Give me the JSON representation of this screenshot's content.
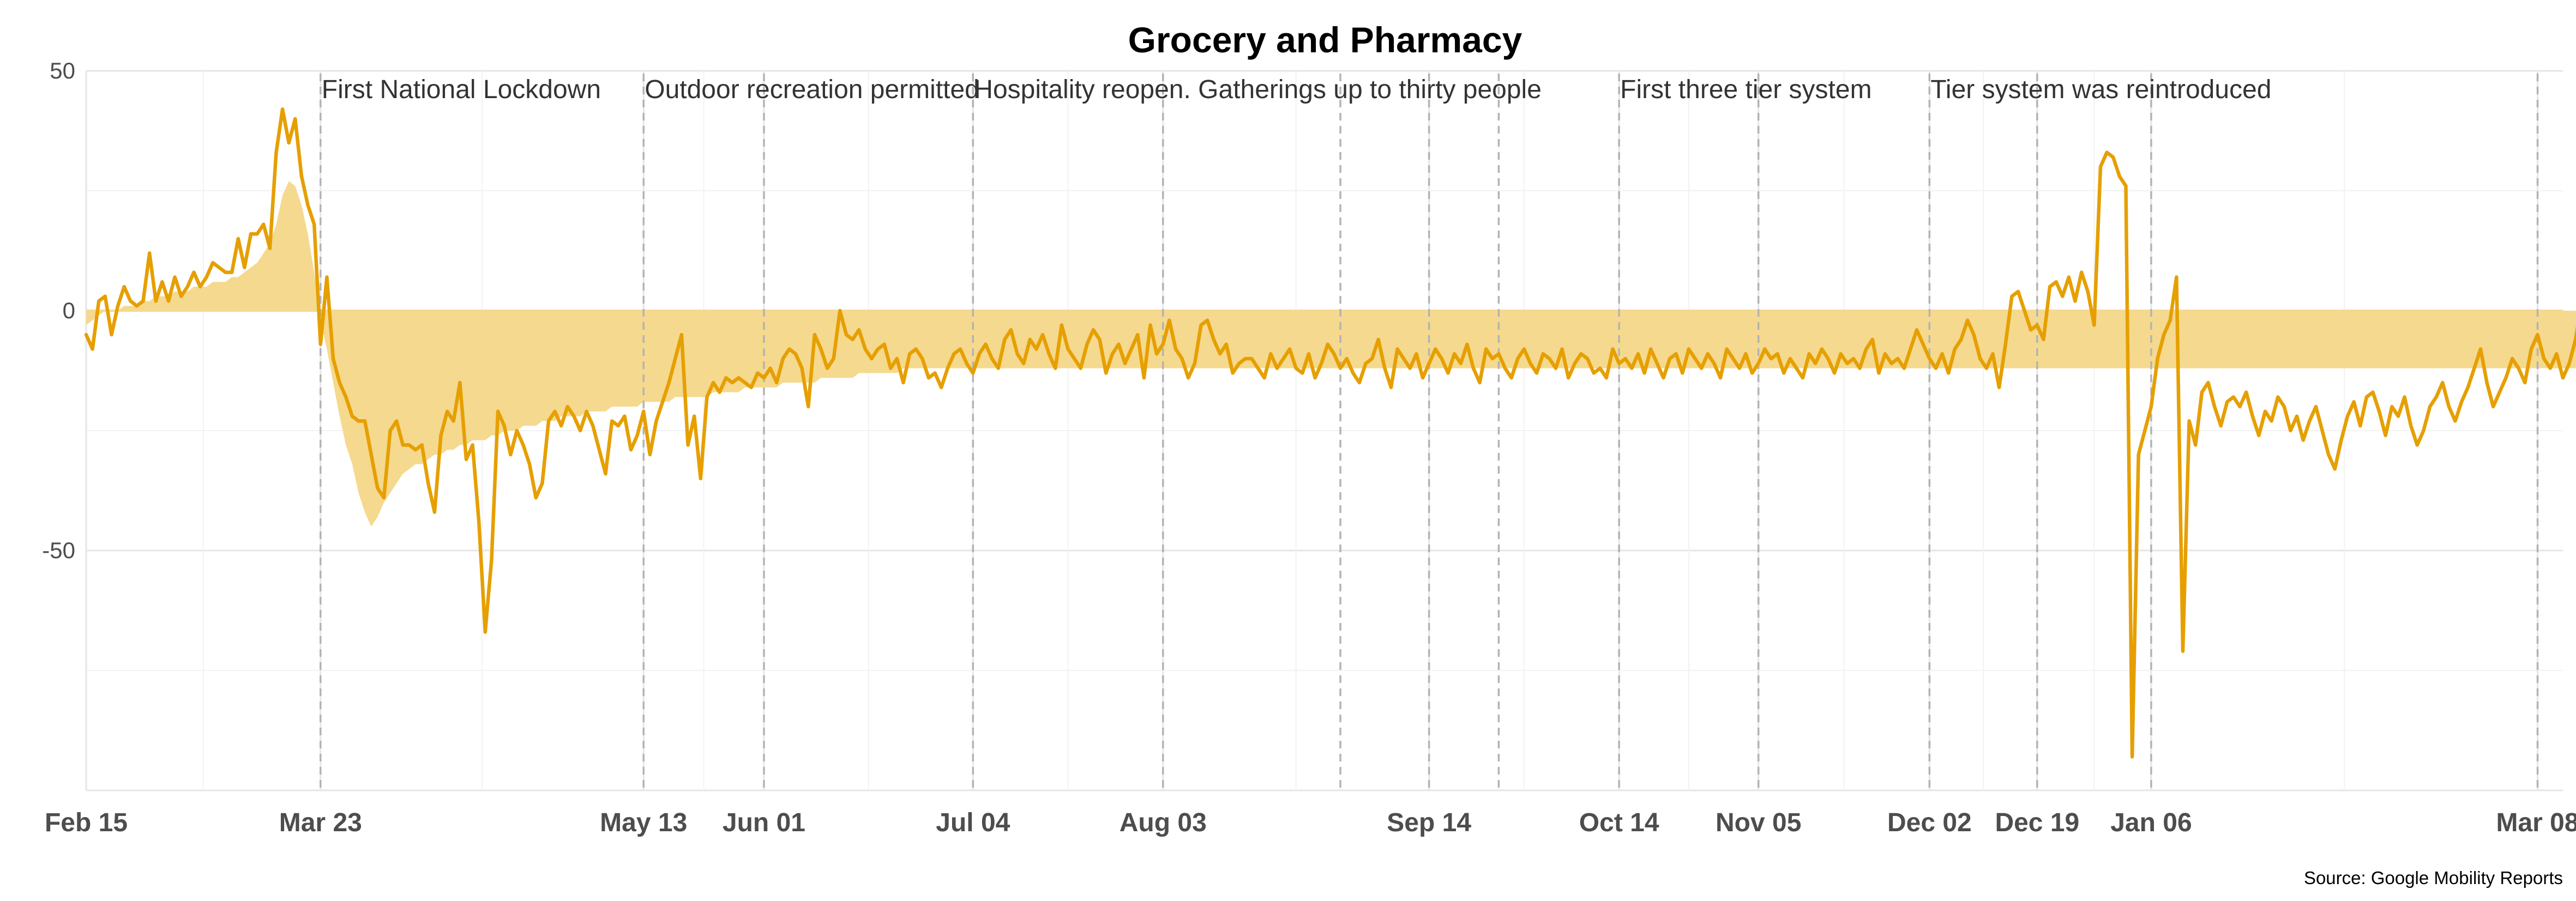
{
  "colors": {
    "line": "#E69F00",
    "area": "#F5D98E",
    "background": "#ffffff"
  },
  "chart_data": {
    "type": "line",
    "title": "Grocery and Pharmacy",
    "caption": "Source: Google Mobility Reports",
    "xlabel": "",
    "ylabel": "",
    "ylim": [
      -100,
      50
    ],
    "y_ticks": [
      50,
      0,
      -50
    ],
    "y_tick_labels": [
      "50",
      "0",
      "-50"
    ],
    "grid": true,
    "x_start": "2020-02-15",
    "x_end": "2021-03-12",
    "x_ticks": [
      {
        "date": "2020-02-15",
        "label": "Feb 15"
      },
      {
        "date": "2020-03-23",
        "label": "Mar 23"
      },
      {
        "date": "2020-05-13",
        "label": "May 13"
      },
      {
        "date": "2020-06-01",
        "label": "Jun 01"
      },
      {
        "date": "2020-07-04",
        "label": "Jul 04"
      },
      {
        "date": "2020-08-03",
        "label": "Aug 03"
      },
      {
        "date": "2020-09-14",
        "label": "Sep 14"
      },
      {
        "date": "2020-10-14",
        "label": "Oct 14"
      },
      {
        "date": "2020-11-05",
        "label": "Nov 05"
      },
      {
        "date": "2020-12-02",
        "label": "Dec 02"
      },
      {
        "date": "2020-12-19",
        "label": "Dec 19"
      },
      {
        "date": "2021-01-06",
        "label": "Jan 06"
      },
      {
        "date": "2021-03-08",
        "label": "Mar 08"
      }
    ],
    "event_lines": [
      "2020-03-23",
      "2020-05-13",
      "2020-06-01",
      "2020-07-04",
      "2020-08-03",
      "2020-08-31",
      "2020-09-14",
      "2020-09-25",
      "2020-10-14",
      "2020-11-05",
      "2020-12-02",
      "2020-12-19",
      "2021-01-06",
      "2021-03-08"
    ],
    "annotations": [
      {
        "date": "2020-03-23",
        "text": "First National Lockdown"
      },
      {
        "date": "2020-05-13",
        "text": "Outdoor recreation permitted"
      },
      {
        "date": "2020-07-04",
        "text": "Hospitality reopen. Gatherings up to thirty people"
      },
      {
        "date": "2020-10-14",
        "text": "First three tier system"
      },
      {
        "date": "2020-12-02",
        "text": "Tier system was reintroduced"
      }
    ],
    "series": [
      {
        "role": "daily",
        "values": [
          -5,
          -8,
          2,
          3,
          -5,
          1,
          5,
          2,
          1,
          2,
          12,
          2,
          6,
          2,
          7,
          3,
          5,
          8,
          5,
          7,
          10,
          9,
          8,
          8,
          15,
          9,
          16,
          16,
          18,
          13,
          33,
          42,
          35,
          40,
          28,
          22,
          18,
          -7,
          7,
          -10,
          -15,
          -18,
          -22,
          -23,
          -23,
          -30,
          -37,
          -39,
          -25,
          -23,
          -28,
          -28,
          -29,
          -28,
          -36,
          -42,
          -26,
          -21,
          -23,
          -15,
          -31,
          -28,
          -44,
          -67,
          -52,
          -21,
          -24,
          -30,
          -25,
          -28,
          -32,
          -39,
          -36,
          -23,
          -21,
          -24,
          -20,
          -22,
          -25,
          -21,
          -24,
          -29,
          -34,
          -23,
          -24,
          -22,
          -29,
          -26,
          -21,
          -30,
          -23,
          -19,
          -15,
          -10,
          -5,
          -28,
          -22,
          -35,
          -18,
          -15,
          -17,
          -14,
          -15,
          -14,
          -15,
          -16,
          -13,
          -14,
          -12,
          -15,
          -10,
          -8,
          -9,
          -12,
          -20,
          -5,
          -8,
          -12,
          -10,
          0,
          -5,
          -6,
          -4,
          -8,
          -10,
          -8,
          -7,
          -12,
          -10,
          -15,
          -9,
          -8,
          -10,
          -14,
          -13,
          -16,
          -12,
          -9,
          -8,
          -11,
          -13,
          -9,
          -7,
          -10,
          -12,
          -6,
          -4,
          -9,
          -11,
          -6,
          -8,
          -5,
          -9,
          -12,
          -3,
          -8,
          -10,
          -12,
          -7,
          -4,
          -6,
          -13,
          -9,
          -7,
          -11,
          -8,
          -5,
          -14,
          -3,
          -9,
          -7,
          -2,
          -8,
          -10,
          -14,
          -11,
          -3,
          -2,
          -6,
          -9,
          -7,
          -13,
          -11,
          -10,
          -10,
          -12,
          -14,
          -9,
          -12,
          -10,
          -8,
          -12,
          -13,
          -9,
          -14,
          -11,
          -7,
          -9,
          -12,
          -10,
          -13,
          -15,
          -11,
          -10,
          -6,
          -12,
          -16,
          -8,
          -10,
          -12,
          -9,
          -14,
          -11,
          -8,
          -10,
          -13,
          -9,
          -11,
          -7,
          -12,
          -15,
          -8,
          -10,
          -9,
          -12,
          -14,
          -10,
          -8,
          -11,
          -13,
          -9,
          -10,
          -12,
          -8,
          -14,
          -11,
          -9,
          -10,
          -13,
          -12,
          -14,
          -8,
          -11,
          -10,
          -12,
          -9,
          -13,
          -8,
          -11,
          -14,
          -10,
          -9,
          -13,
          -8,
          -10,
          -12,
          -9,
          -11,
          -14,
          -8,
          -10,
          -12,
          -9,
          -13,
          -11,
          -8,
          -10,
          -9,
          -13,
          -10,
          -12,
          -14,
          -9,
          -11,
          -8,
          -10,
          -13,
          -9,
          -11,
          -10,
          -12,
          -8,
          -6,
          -13,
          -9,
          -11,
          -10,
          -12,
          -8,
          -4,
          -7,
          -10,
          -12,
          -9,
          -13,
          -8,
          -6,
          -2,
          -5,
          -10,
          -12,
          -9,
          -16,
          -7,
          3,
          4,
          0,
          -4,
          -3,
          -6,
          5,
          6,
          3,
          7,
          2,
          8,
          4,
          -3,
          30,
          33,
          32,
          28,
          26,
          -93,
          -30,
          -25,
          -20,
          -10,
          -5,
          -2,
          7,
          -71,
          -23,
          -28,
          -17,
          -15,
          -20,
          -24,
          -19,
          -18,
          -20,
          -17,
          -22,
          -26,
          -21,
          -23,
          -18,
          -20,
          -25,
          -22,
          -27,
          -23,
          -20,
          -25,
          -30,
          -33,
          -27,
          -22,
          -19,
          -24,
          -18,
          -17,
          -21,
          -26,
          -20,
          -22,
          -18,
          -24,
          -28,
          -25,
          -20,
          -18,
          -15,
          -20,
          -23,
          -19,
          -16,
          -12,
          -8,
          -15,
          -20,
          -17,
          -14,
          -10,
          -12,
          -15,
          -8,
          -5,
          -10,
          -12,
          -9,
          -14,
          -11,
          -6,
          2,
          -5,
          -8,
          -10,
          -7,
          -3,
          -6,
          -9,
          -13,
          -14,
          -11,
          -8,
          -6,
          -4,
          0,
          -5,
          -9,
          -6,
          2,
          12
        ]
      },
      {
        "role": "baseline",
        "values": [
          -3,
          -2,
          -1,
          0,
          0,
          0,
          1,
          1,
          1,
          2,
          2,
          3,
          3,
          3,
          4,
          4,
          4,
          5,
          5,
          5,
          6,
          6,
          6,
          7,
          7,
          8,
          9,
          10,
          12,
          14,
          18,
          24,
          27,
          26,
          22,
          16,
          8,
          -2,
          -8,
          -15,
          -22,
          -28,
          -32,
          -38,
          -42,
          -45,
          -43,
          -40,
          -38,
          -36,
          -34,
          -33,
          -32,
          -32,
          -31,
          -30,
          -30,
          -29,
          -29,
          -28,
          -28,
          -27,
          -27,
          -27,
          -26,
          -26,
          -25,
          -25,
          -25,
          -24,
          -24,
          -24,
          -23,
          -23,
          -23,
          -22,
          -22,
          -22,
          -22,
          -21,
          -21,
          -21,
          -21,
          -20,
          -20,
          -20,
          -20,
          -20,
          -19,
          -19,
          -19,
          -19,
          -19,
          -18,
          -18,
          -18,
          -18,
          -18,
          -18,
          -17,
          -17,
          -17,
          -17,
          -17,
          -16,
          -16,
          -16,
          -16,
          -16,
          -16,
          -15,
          -15,
          -15,
          -15,
          -15,
          -15,
          -14,
          -14,
          -14,
          -14,
          -14,
          -14,
          -13,
          -13,
          -13,
          -13,
          -13,
          -13,
          -13,
          -12,
          -12,
          -12,
          -12,
          -12,
          -12,
          -12,
          -12,
          -12,
          -12,
          -12,
          -12,
          -12,
          -12,
          -12,
          -12,
          -12,
          -12,
          -12,
          -12,
          -12,
          -12,
          -12,
          -12,
          -12,
          -12,
          -12,
          -12,
          -12,
          -12,
          -12,
          -12,
          -12,
          -12,
          -12,
          -12,
          -12,
          -12,
          -12,
          -12,
          -12,
          -12,
          -12,
          -12,
          -12,
          -12,
          -12,
          -12,
          -12,
          -12,
          -12,
          -12,
          -12,
          -12,
          -12,
          -12,
          -12,
          -12,
          -12,
          -12,
          -12,
          -12,
          -12,
          -12,
          -12,
          -12,
          -12,
          -12,
          -12,
          -12,
          -12,
          -12,
          -12,
          -12,
          -12,
          -12,
          -12,
          -12,
          -12,
          -12,
          -12,
          -12,
          -12,
          -12,
          -12,
          -12,
          -12,
          -12,
          -12,
          -12,
          -12,
          -12,
          -12,
          -12,
          -12,
          -12,
          -12,
          -12,
          -12,
          -12,
          -12,
          -12,
          -12,
          -12,
          -12,
          -12,
          -12,
          -12,
          -12,
          -12,
          -12,
          -12,
          -12,
          -12,
          -12,
          -12,
          -12,
          -12,
          -12,
          -12,
          -12,
          -12,
          -12,
          -12,
          -12,
          -12,
          -12,
          -12,
          -12,
          -12,
          -12,
          -12,
          -12,
          -12,
          -12,
          -12,
          -12,
          -12,
          -12,
          -12,
          -12,
          -12,
          -12,
          -12,
          -12,
          -12,
          -12,
          -12,
          -12,
          -12,
          -12,
          -12,
          -12,
          -12,
          -12,
          -12,
          -12,
          -12,
          -12,
          -12,
          -12,
          -12,
          -12,
          -12,
          -12,
          -12,
          -12,
          -12,
          -12,
          -12,
          -12,
          -12,
          -12,
          -12,
          -12,
          -12,
          -12,
          -12,
          -12,
          -12,
          -12,
          -12,
          -12,
          -12,
          -12,
          -12,
          -12,
          -12,
          -12,
          -12,
          -12,
          -12,
          -12,
          -12,
          -12,
          -12,
          -12,
          -12,
          -12,
          -12,
          -12,
          -12,
          -12,
          -12,
          -12,
          -12,
          -12,
          -12,
          -12,
          -12,
          -12,
          -12,
          -12,
          -12,
          -12,
          -12,
          -12,
          -12,
          -12,
          -12,
          -12,
          -12,
          -12,
          -12,
          -12,
          -12,
          -12,
          -12,
          -12,
          -12,
          -12,
          -12,
          -12,
          -12,
          -12,
          -12,
          -12,
          -12,
          -12,
          -12,
          -12,
          -12,
          -12,
          -12,
          -12,
          -12,
          -12,
          -12,
          -12,
          -12,
          -12,
          -12,
          -12,
          -12,
          -12,
          -12,
          -12,
          -12,
          -12,
          -12,
          -12,
          -12,
          -12,
          -12,
          -12,
          -12,
          -12,
          -12,
          -12,
          -12,
          -12,
          -12,
          -12,
          -12,
          -12,
          -12,
          -12,
          -12,
          -12,
          -12,
          -12,
          -12,
          -12,
          -12,
          -12,
          -12,
          -12,
          -12,
          -12,
          -12,
          -12,
          -12,
          -12,
          -12,
          -12,
          -12,
          -12,
          -12,
          -12,
          -12,
          -12,
          -12,
          -12,
          -12,
          -12,
          -12
        ]
      }
    ]
  }
}
